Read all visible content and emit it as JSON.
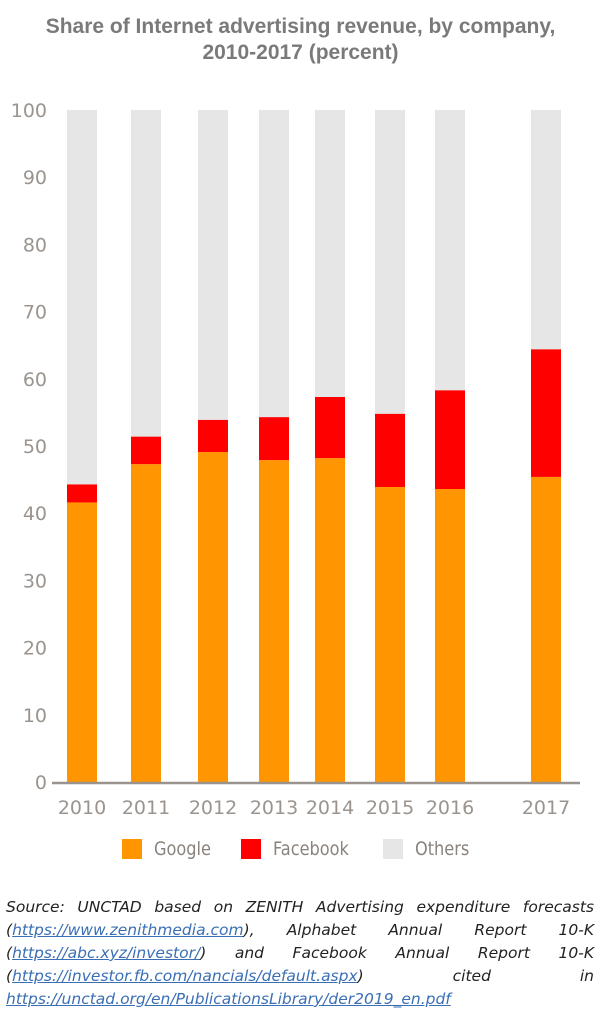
{
  "chart_data": {
    "type": "bar",
    "stacked": true,
    "title": "Share of Internet advertising revenue, by company, 2010-2017 (percent)",
    "title_lines": [
      "Share of Internet advertising revenue, by company,",
      "2010-2017 (percent)"
    ],
    "xlabel": "",
    "ylabel": "",
    "ylim": [
      0,
      100
    ],
    "yticks": [
      0,
      10,
      20,
      30,
      40,
      50,
      60,
      70,
      80,
      90,
      100
    ],
    "grid": false,
    "legend_position": "bottom",
    "categories": [
      "2010",
      "2011",
      "2012",
      "2013",
      "2014",
      "2015",
      "2016",
      "2017"
    ],
    "series": [
      {
        "name": "Google",
        "color": "#ff9500",
        "values": [
          41.6,
          47.3,
          49.1,
          47.9,
          48.2,
          43.9,
          43.6,
          45.4
        ]
      },
      {
        "name": "Facebook",
        "color": "#ff0000",
        "values": [
          2.7,
          4.1,
          4.8,
          6.4,
          9.1,
          10.9,
          14.7,
          19.0
        ]
      },
      {
        "name": "Others",
        "color": "#e6e6e6",
        "values": [
          55.7,
          48.6,
          46.1,
          45.7,
          42.7,
          45.2,
          41.7,
          35.6
        ]
      }
    ]
  },
  "source": {
    "parts": [
      {
        "text": "Source: UNCTAD based on ZENITH Advertising expenditure forecasts (",
        "link": false
      },
      {
        "text": "https://www.zenithmedia.com",
        "link": true
      },
      {
        "text": "), Alphabet Annual Report 10-K (",
        "link": false
      },
      {
        "text": "https://abc.xyz/investor/",
        "link": true
      },
      {
        "text": ") and Facebook Annual Report 10-K (",
        "link": false
      },
      {
        "text": "https://investor.fb.com/nancials/default.aspx",
        "link": true
      },
      {
        "text": ") cited in ",
        "link": false
      },
      {
        "text": "https://unctad.org/en/PublicationsLibrary/der2019_en.pdf",
        "link": true
      }
    ]
  }
}
